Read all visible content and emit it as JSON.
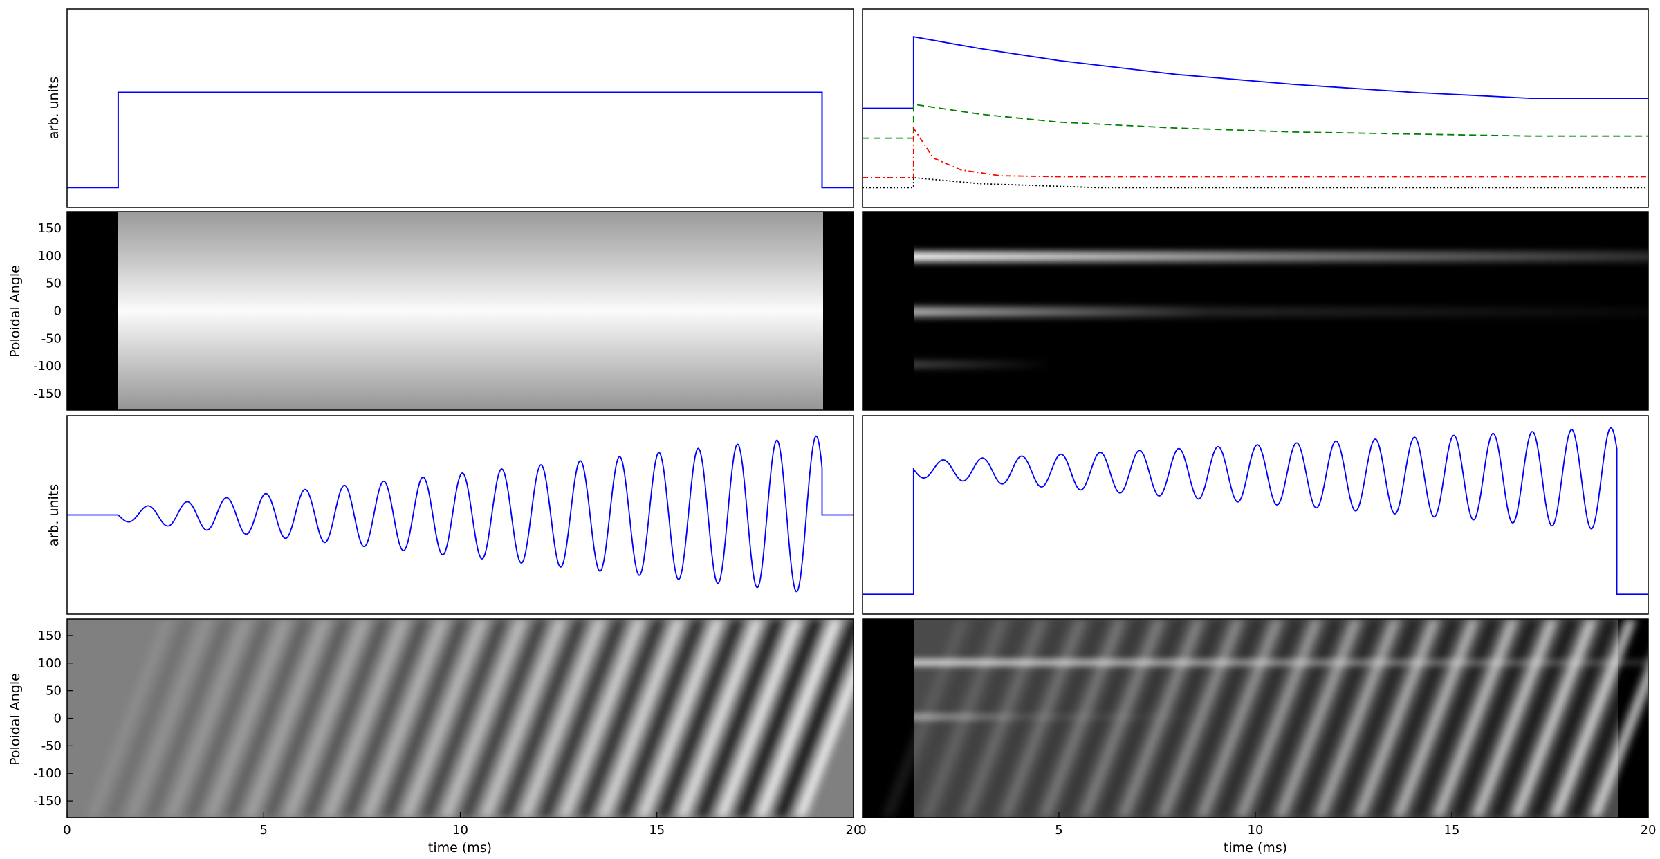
{
  "chart_data": [
    {
      "type": "line",
      "panel": "top-left",
      "ylabel": "arb. units",
      "xlim": [
        0,
        20
      ],
      "series": [
        {
          "color": "#0000ff",
          "style": "solid",
          "x": [
            0,
            1.3,
            1.3,
            19.2,
            19.2,
            20
          ],
          "y": [
            0.1,
            0.1,
            0.58,
            0.58,
            0.1,
            0.1
          ]
        }
      ]
    },
    {
      "type": "line",
      "panel": "top-right",
      "xlim": [
        0,
        20
      ],
      "series": [
        {
          "color": "#0000ff",
          "style": "solid",
          "x": [
            0,
            1.3,
            1.3,
            3,
            5,
            8,
            11,
            14,
            17,
            20
          ],
          "y": [
            0.5,
            0.5,
            0.86,
            0.8,
            0.74,
            0.67,
            0.62,
            0.58,
            0.55,
            0.55
          ]
        },
        {
          "color": "#008000",
          "style": "dashed",
          "x": [
            0,
            1.3,
            1.3,
            3,
            5,
            8,
            11,
            14,
            17,
            20
          ],
          "y": [
            0.35,
            0.35,
            0.52,
            0.47,
            0.43,
            0.4,
            0.38,
            0.37,
            0.36,
            0.36
          ]
        },
        {
          "color": "#ff0000",
          "style": "dashdot",
          "x": [
            0,
            1.3,
            1.3,
            1.8,
            2.5,
            3.5,
            5,
            20
          ],
          "y": [
            0.15,
            0.15,
            0.4,
            0.25,
            0.19,
            0.16,
            0.155,
            0.155
          ]
        },
        {
          "color": "#000000",
          "style": "dotted",
          "x": [
            0,
            1.3,
            1.3,
            3,
            6,
            20
          ],
          "y": [
            0.1,
            0.1,
            0.15,
            0.12,
            0.1,
            0.1
          ]
        }
      ]
    },
    {
      "type": "heatmap",
      "panel": "middle-left",
      "ylabel": "Poloidal Angle",
      "xlim": [
        0,
        20
      ],
      "ylim": [
        -180,
        180
      ],
      "yticks": [
        -150,
        -100,
        -50,
        0,
        50,
        100,
        150
      ],
      "description_values": {
        "on_start": 1.3,
        "on_end": 19.2
      }
    },
    {
      "type": "heatmap",
      "panel": "middle-right",
      "xlim": [
        0,
        20
      ],
      "ylim": [
        -180,
        180
      ],
      "bands": [
        {
          "angle": 95,
          "start": 1.3,
          "fade_end": 20,
          "peak": 0.95
        },
        {
          "angle": 0,
          "start": 1.3,
          "fade_end": 20,
          "peak": 0.55
        },
        {
          "angle": -100,
          "start": 1.3,
          "fade_end": 5,
          "peak": 0.3
        }
      ]
    },
    {
      "type": "line",
      "panel": "lower-left",
      "ylabel": "arb. units",
      "xlim": [
        0,
        20
      ],
      "oscillation": {
        "start": 1.3,
        "end": 19.2,
        "period": 1.0,
        "amp_start": 0.03,
        "amp_end": 0.4,
        "baseline": 0.5
      },
      "color": "#0000ff"
    },
    {
      "type": "line",
      "panel": "lower-right",
      "xlim": [
        0,
        20
      ],
      "oscillation": {
        "start": 1.3,
        "end": 19.2,
        "period": 1.0,
        "amp_start": 0.04,
        "amp_end": 0.26,
        "baseline_start": 0.73,
        "baseline_end": 0.68,
        "pre_level": 0.1
      },
      "color": "#0000ff"
    },
    {
      "type": "heatmap",
      "panel": "bottom-left",
      "ylabel": "Poloidal Angle",
      "xlabel": "time (ms)",
      "xlim": [
        0,
        20
      ],
      "ylim": [
        -180,
        180
      ],
      "xticks": [
        0,
        5,
        10,
        15,
        20
      ],
      "yticks": [
        -150,
        -100,
        -50,
        0,
        50,
        100,
        150
      ]
    },
    {
      "type": "heatmap",
      "panel": "bottom-right",
      "xlabel": "time (ms)",
      "xlim": [
        0,
        20
      ],
      "ylim": [
        -180,
        180
      ],
      "xticks": [
        0,
        5,
        10,
        15,
        20
      ]
    }
  ],
  "labels": {
    "arb_units": "arb. units",
    "poloidal_angle": "Poloidal Angle",
    "time_ms": "time (ms)"
  }
}
